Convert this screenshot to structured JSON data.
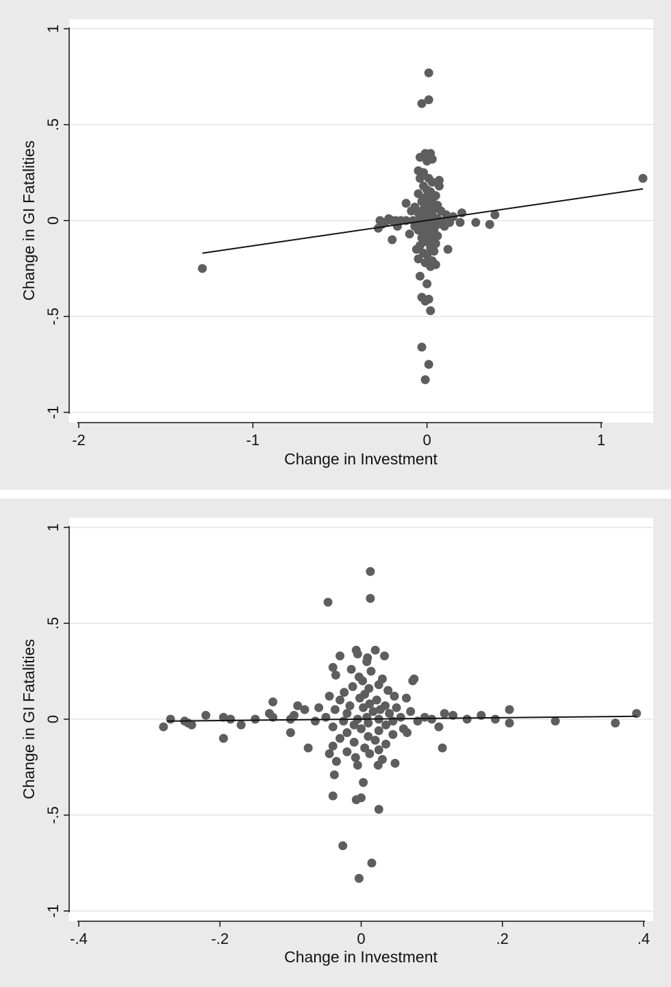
{
  "chart_data": [
    {
      "type": "scatter",
      "title": "",
      "xlabel": "Change in Investment",
      "ylabel": "Change in GI Fatalities",
      "xlim": [
        -2,
        1.3
      ],
      "ylim": [
        -1,
        1
      ],
      "xticks": [
        -2,
        -1,
        0,
        1
      ],
      "xtick_labels": [
        "-2",
        "-1",
        "0",
        "1"
      ],
      "yticks": [
        -1,
        -0.5,
        0,
        0.5,
        1
      ],
      "ytick_labels": [
        "-1",
        "-.5",
        "0",
        ".5",
        "1"
      ],
      "grid": true,
      "marker_color": "#5e5e5e",
      "line_color": "#111111",
      "fit_line": {
        "x": [
          -1.29,
          1.24
        ],
        "y": [
          -0.17,
          0.165
        ]
      },
      "points": [
        {
          "x": 0.01,
          "y": 0.77
        },
        {
          "x": -0.03,
          "y": 0.61
        },
        {
          "x": 0.01,
          "y": 0.63
        },
        {
          "x": -0.01,
          "y": 0.35
        },
        {
          "x": 0.02,
          "y": 0.35
        },
        {
          "x": -0.04,
          "y": 0.33
        },
        {
          "x": 0.03,
          "y": 0.32
        },
        {
          "x": 0.0,
          "y": 0.31
        },
        {
          "x": -0.05,
          "y": 0.26
        },
        {
          "x": -0.02,
          "y": 0.25
        },
        {
          "x": 0.01,
          "y": 0.22
        },
        {
          "x": 0.07,
          "y": 0.21
        },
        {
          "x": -0.04,
          "y": 0.22
        },
        {
          "x": 0.03,
          "y": 0.2
        },
        {
          "x": 0.07,
          "y": 0.18
        },
        {
          "x": -0.02,
          "y": 0.18
        },
        {
          "x": 0.0,
          "y": 0.16
        },
        {
          "x": 0.02,
          "y": 0.15
        },
        {
          "x": -0.05,
          "y": 0.14
        },
        {
          "x": 0.05,
          "y": 0.13
        },
        {
          "x": -0.01,
          "y": 0.12
        },
        {
          "x": 0.03,
          "y": 0.11
        },
        {
          "x": -0.03,
          "y": 0.1
        },
        {
          "x": 0.01,
          "y": 0.09
        },
        {
          "x": -0.12,
          "y": 0.09
        },
        {
          "x": 0.06,
          "y": 0.08
        },
        {
          "x": -0.07,
          "y": 0.07
        },
        {
          "x": 0.02,
          "y": 0.07
        },
        {
          "x": -0.02,
          "y": 0.06
        },
        {
          "x": 0.04,
          "y": 0.06
        },
        {
          "x": -0.09,
          "y": 0.05
        },
        {
          "x": 0.0,
          "y": 0.05
        },
        {
          "x": 0.08,
          "y": 0.05
        },
        {
          "x": 0.2,
          "y": 0.04
        },
        {
          "x": 0.39,
          "y": 0.03
        },
        {
          "x": -0.05,
          "y": 0.04
        },
        {
          "x": 0.03,
          "y": 0.03
        },
        {
          "x": -0.01,
          "y": 0.03
        },
        {
          "x": 0.11,
          "y": 0.03
        },
        {
          "x": 0.15,
          "y": 0.02
        },
        {
          "x": -0.04,
          "y": 0.02
        },
        {
          "x": 0.01,
          "y": 0.02
        },
        {
          "x": -0.22,
          "y": 0.01
        },
        {
          "x": 0.06,
          "y": 0.01
        },
        {
          "x": -0.02,
          "y": 0.01
        },
        {
          "x": 0.02,
          "y": 0.0
        },
        {
          "x": -0.27,
          "y": 0.0
        },
        {
          "x": -0.2,
          "y": 0.0
        },
        {
          "x": -0.24,
          "y": -0.01
        },
        {
          "x": -0.18,
          "y": 0.0
        },
        {
          "x": -0.15,
          "y": 0.0
        },
        {
          "x": -0.12,
          "y": 0.0
        },
        {
          "x": -0.08,
          "y": 0.0
        },
        {
          "x": 0.0,
          "y": 0.0
        },
        {
          "x": 0.04,
          "y": -0.01
        },
        {
          "x": 0.09,
          "y": -0.01
        },
        {
          "x": 0.13,
          "y": -0.01
        },
        {
          "x": 0.19,
          "y": -0.01
        },
        {
          "x": 0.28,
          "y": -0.01
        },
        {
          "x": 0.36,
          "y": -0.02
        },
        {
          "x": -0.26,
          "y": -0.02
        },
        {
          "x": -0.04,
          "y": -0.02
        },
        {
          "x": 0.01,
          "y": -0.02
        },
        {
          "x": 0.06,
          "y": -0.02
        },
        {
          "x": -0.17,
          "y": -0.03
        },
        {
          "x": -0.02,
          "y": -0.03
        },
        {
          "x": 0.03,
          "y": -0.03
        },
        {
          "x": -0.07,
          "y": -0.03
        },
        {
          "x": 0.1,
          "y": -0.03
        },
        {
          "x": -0.28,
          "y": -0.04
        },
        {
          "x": 0.0,
          "y": -0.04
        },
        {
          "x": -0.05,
          "y": -0.05
        },
        {
          "x": 0.04,
          "y": -0.05
        },
        {
          "x": -0.01,
          "y": -0.06
        },
        {
          "x": 0.02,
          "y": -0.07
        },
        {
          "x": -0.1,
          "y": -0.07
        },
        {
          "x": 0.06,
          "y": -0.08
        },
        {
          "x": -0.03,
          "y": -0.09
        },
        {
          "x": 0.01,
          "y": -0.09
        },
        {
          "x": -0.2,
          "y": -0.1
        },
        {
          "x": 0.03,
          "y": -0.1
        },
        {
          "x": -0.01,
          "y": -0.11
        },
        {
          "x": 0.05,
          "y": -0.12
        },
        {
          "x": -0.04,
          "y": -0.13
        },
        {
          "x": 0.02,
          "y": -0.14
        },
        {
          "x": -0.06,
          "y": -0.15
        },
        {
          "x": 0.12,
          "y": -0.15
        },
        {
          "x": 0.04,
          "y": -0.16
        },
        {
          "x": -0.02,
          "y": -0.17
        },
        {
          "x": 0.0,
          "y": -0.18
        },
        {
          "x": -0.05,
          "y": -0.2
        },
        {
          "x": 0.03,
          "y": -0.21
        },
        {
          "x": -0.01,
          "y": -0.22
        },
        {
          "x": 0.05,
          "y": -0.23
        },
        {
          "x": 0.02,
          "y": -0.24
        },
        {
          "x": -1.29,
          "y": -0.25
        },
        {
          "x": -0.04,
          "y": -0.29
        },
        {
          "x": 0.0,
          "y": -0.33
        },
        {
          "x": -0.03,
          "y": -0.4
        },
        {
          "x": 0.01,
          "y": -0.41
        },
        {
          "x": -0.01,
          "y": -0.42
        },
        {
          "x": 0.02,
          "y": -0.47
        },
        {
          "x": -0.03,
          "y": -0.66
        },
        {
          "x": 0.01,
          "y": -0.75
        },
        {
          "x": -0.01,
          "y": -0.83
        },
        {
          "x": 1.24,
          "y": 0.22
        }
      ]
    },
    {
      "type": "scatter",
      "title": "",
      "xlabel": "Change in Investment",
      "ylabel": "Change in GI Fatalities",
      "xlim": [
        -0.4,
        0.41
      ],
      "ylim": [
        -1,
        1
      ],
      "xticks": [
        -0.4,
        -0.2,
        0,
        0.2,
        0.4
      ],
      "xtick_labels": [
        "-.4",
        "-.2",
        "0",
        ".2",
        ".4"
      ],
      "yticks": [
        -1,
        -0.5,
        0,
        0.5,
        1
      ],
      "ytick_labels": [
        "-1",
        "-.5",
        "0",
        ".5",
        "1"
      ],
      "grid": true,
      "marker_color": "#5e5e5e",
      "line_color": "#111111",
      "fit_line": {
        "x": [
          -0.275,
          0.39
        ],
        "y": [
          -0.01,
          0.015
        ]
      },
      "points": [
        {
          "x": 0.013,
          "y": 0.77
        },
        {
          "x": -0.047,
          "y": 0.61
        },
        {
          "x": 0.013,
          "y": 0.63
        },
        {
          "x": -0.007,
          "y": 0.36
        },
        {
          "x": 0.02,
          "y": 0.36
        },
        {
          "x": -0.03,
          "y": 0.33
        },
        {
          "x": 0.033,
          "y": 0.33
        },
        {
          "x": -0.005,
          "y": 0.34
        },
        {
          "x": 0.009,
          "y": 0.32
        },
        {
          "x": 0.008,
          "y": 0.3
        },
        {
          "x": -0.04,
          "y": 0.27
        },
        {
          "x": 0.014,
          "y": 0.25
        },
        {
          "x": -0.014,
          "y": 0.26
        },
        {
          "x": -0.036,
          "y": 0.23
        },
        {
          "x": 0.075,
          "y": 0.21
        },
        {
          "x": 0.073,
          "y": 0.2
        },
        {
          "x": -0.003,
          "y": 0.22
        },
        {
          "x": 0.03,
          "y": 0.21
        },
        {
          "x": 0.002,
          "y": 0.2
        },
        {
          "x": 0.025,
          "y": 0.18
        },
        {
          "x": -0.012,
          "y": 0.17
        },
        {
          "x": 0.011,
          "y": 0.16
        },
        {
          "x": -0.024,
          "y": 0.14
        },
        {
          "x": 0.038,
          "y": 0.15
        },
        {
          "x": 0.005,
          "y": 0.13
        },
        {
          "x": -0.045,
          "y": 0.12
        },
        {
          "x": 0.047,
          "y": 0.12
        },
        {
          "x": -0.002,
          "y": 0.11
        },
        {
          "x": 0.022,
          "y": 0.1
        },
        {
          "x": -0.03,
          "y": 0.1
        },
        {
          "x": 0.064,
          "y": 0.11
        },
        {
          "x": -0.125,
          "y": 0.09
        },
        {
          "x": 0.012,
          "y": 0.08
        },
        {
          "x": -0.016,
          "y": 0.07
        },
        {
          "x": 0.034,
          "y": 0.07
        },
        {
          "x": -0.09,
          "y": 0.07
        },
        {
          "x": -0.06,
          "y": 0.06
        },
        {
          "x": 0.05,
          "y": 0.06
        },
        {
          "x": 0.003,
          "y": 0.06
        },
        {
          "x": 0.21,
          "y": 0.05
        },
        {
          "x": -0.08,
          "y": 0.05
        },
        {
          "x": 0.027,
          "y": 0.05
        },
        {
          "x": -0.037,
          "y": 0.05
        },
        {
          "x": 0.07,
          "y": 0.04
        },
        {
          "x": 0.017,
          "y": 0.04
        },
        {
          "x": 0.39,
          "y": 0.03
        },
        {
          "x": -0.13,
          "y": 0.03
        },
        {
          "x": -0.02,
          "y": 0.03
        },
        {
          "x": 0.04,
          "y": 0.03
        },
        {
          "x": 0.118,
          "y": 0.03
        },
        {
          "x": 0.13,
          "y": 0.02
        },
        {
          "x": 0.17,
          "y": 0.02
        },
        {
          "x": -0.095,
          "y": 0.02
        },
        {
          "x": -0.22,
          "y": 0.02
        },
        {
          "x": -0.125,
          "y": 0.01
        },
        {
          "x": -0.195,
          "y": 0.01
        },
        {
          "x": 0.008,
          "y": 0.01
        },
        {
          "x": 0.056,
          "y": 0.01
        },
        {
          "x": 0.09,
          "y": 0.01
        },
        {
          "x": -0.05,
          "y": 0.01
        },
        {
          "x": -0.27,
          "y": 0.0
        },
        {
          "x": -0.185,
          "y": 0.0
        },
        {
          "x": -0.15,
          "y": 0.0
        },
        {
          "x": -0.1,
          "y": 0.0
        },
        {
          "x": -0.005,
          "y": 0.0
        },
        {
          "x": 0.025,
          "y": 0.0
        },
        {
          "x": 0.1,
          "y": 0.0
        },
        {
          "x": 0.15,
          "y": 0.0
        },
        {
          "x": 0.19,
          "y": 0.0
        },
        {
          "x": 0.275,
          "y": -0.01
        },
        {
          "x": -0.25,
          "y": -0.01
        },
        {
          "x": -0.065,
          "y": -0.01
        },
        {
          "x": 0.045,
          "y": -0.01
        },
        {
          "x": 0.08,
          "y": -0.01
        },
        {
          "x": -0.025,
          "y": -0.01
        },
        {
          "x": 0.36,
          "y": -0.02
        },
        {
          "x": 0.21,
          "y": -0.02
        },
        {
          "x": -0.245,
          "y": -0.02
        },
        {
          "x": 0.01,
          "y": -0.02
        },
        {
          "x": -0.01,
          "y": -0.03
        },
        {
          "x": -0.24,
          "y": -0.03
        },
        {
          "x": -0.17,
          "y": -0.03
        },
        {
          "x": 0.035,
          "y": -0.03
        },
        {
          "x": 0.11,
          "y": -0.04
        },
        {
          "x": -0.28,
          "y": -0.04
        },
        {
          "x": -0.04,
          "y": -0.04
        },
        {
          "x": 0.06,
          "y": -0.05
        },
        {
          "x": 0.0,
          "y": -0.05
        },
        {
          "x": 0.025,
          "y": -0.06
        },
        {
          "x": -0.02,
          "y": -0.07
        },
        {
          "x": -0.1,
          "y": -0.07
        },
        {
          "x": 0.065,
          "y": -0.07
        },
        {
          "x": 0.045,
          "y": -0.08
        },
        {
          "x": 0.01,
          "y": -0.09
        },
        {
          "x": -0.03,
          "y": -0.1
        },
        {
          "x": -0.195,
          "y": -0.1
        },
        {
          "x": 0.02,
          "y": -0.11
        },
        {
          "x": -0.01,
          "y": -0.12
        },
        {
          "x": 0.035,
          "y": -0.13
        },
        {
          "x": -0.04,
          "y": -0.14
        },
        {
          "x": 0.005,
          "y": -0.15
        },
        {
          "x": -0.075,
          "y": -0.15
        },
        {
          "x": 0.115,
          "y": -0.15
        },
        {
          "x": 0.025,
          "y": -0.16
        },
        {
          "x": -0.02,
          "y": -0.17
        },
        {
          "x": -0.045,
          "y": -0.18
        },
        {
          "x": 0.012,
          "y": -0.18
        },
        {
          "x": -0.008,
          "y": -0.2
        },
        {
          "x": 0.03,
          "y": -0.21
        },
        {
          "x": -0.035,
          "y": -0.22
        },
        {
          "x": 0.048,
          "y": -0.23
        },
        {
          "x": -0.005,
          "y": -0.24
        },
        {
          "x": 0.024,
          "y": -0.24
        },
        {
          "x": -0.038,
          "y": -0.29
        },
        {
          "x": 0.003,
          "y": -0.33
        },
        {
          "x": -0.04,
          "y": -0.4
        },
        {
          "x": -0.007,
          "y": -0.42
        },
        {
          "x": 0.0,
          "y": -0.41
        },
        {
          "x": 0.025,
          "y": -0.47
        },
        {
          "x": -0.026,
          "y": -0.66
        },
        {
          "x": 0.015,
          "y": -0.75
        },
        {
          "x": -0.003,
          "y": -0.83
        }
      ]
    }
  ]
}
